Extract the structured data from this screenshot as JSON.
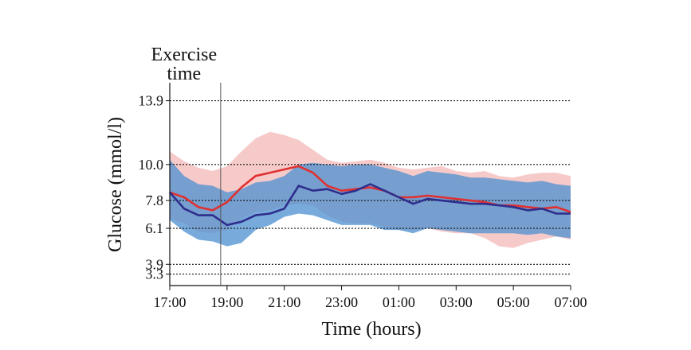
{
  "chart_data": {
    "type": "line",
    "xlabel": "Time (hours)",
    "ylabel": "Glucose (mmol/l)",
    "x_ticks": [
      "17:00",
      "19:00",
      "21:00",
      "23:00",
      "01:00",
      "03:00",
      "05:00",
      "07:00"
    ],
    "x_range_hours_after_17_00": [
      0,
      14
    ],
    "y_ticks": [
      3.3,
      3.9,
      6.1,
      7.8,
      10.0,
      13.9
    ],
    "y_tick_labels": [
      "3.3",
      "3.9",
      "6.1",
      "7.8",
      "10.0",
      "13.9"
    ],
    "ylim": [
      2.6,
      15.0
    ],
    "reference_lines": [
      3.3,
      3.9,
      6.1,
      7.8,
      10.0,
      13.9
    ],
    "reference_line_style": "dotted",
    "grid": false,
    "annotation": {
      "lines": [
        "Exercise",
        "time"
      ],
      "x": "19:00"
    },
    "series": [
      {
        "color": "#e03030",
        "band_color": "#f2a6a6",
        "x": [
          0,
          0.5,
          1,
          1.5,
          2,
          2.5,
          3,
          3.5,
          4,
          4.5,
          5,
          5.5,
          6,
          6.5,
          7,
          7.5,
          8,
          8.5,
          9,
          9.5,
          10,
          10.5,
          11,
          11.5,
          12,
          12.5,
          13,
          13.5,
          14
        ],
        "values": [
          8.3,
          8.0,
          7.4,
          7.2,
          7.7,
          8.6,
          9.3,
          9.5,
          9.7,
          9.9,
          9.5,
          8.7,
          8.4,
          8.5,
          8.6,
          8.4,
          8.0,
          8.0,
          8.1,
          8.0,
          7.9,
          7.8,
          7.7,
          7.5,
          7.5,
          7.4,
          7.3,
          7.4,
          7.1
        ],
        "band_upper": [
          10.8,
          10.2,
          9.8,
          9.6,
          9.9,
          10.8,
          11.6,
          12.0,
          11.8,
          11.5,
          10.9,
          10.3,
          10.1,
          10.2,
          10.3,
          10.1,
          9.8,
          9.7,
          9.8,
          9.9,
          9.6,
          9.5,
          9.6,
          9.3,
          9.2,
          9.4,
          9.5,
          9.5,
          9.3
        ],
        "band_lower": [
          6.7,
          6.4,
          5.9,
          5.8,
          6.0,
          6.7,
          7.1,
          7.2,
          7.5,
          7.6,
          7.5,
          6.9,
          6.5,
          6.4,
          6.4,
          6.2,
          6.0,
          6.0,
          6.1,
          5.9,
          5.8,
          5.8,
          5.5,
          5.0,
          4.9,
          5.2,
          5.4,
          5.6,
          5.4
        ]
      },
      {
        "color": "#2e2e8c",
        "band_color": "#4b8fd0",
        "x": [
          0,
          0.5,
          1,
          1.5,
          2,
          2.5,
          3,
          3.5,
          4,
          4.5,
          5,
          5.5,
          6,
          6.5,
          7,
          7.5,
          8,
          8.5,
          9,
          9.5,
          10,
          10.5,
          11,
          11.5,
          12,
          12.5,
          13,
          13.5,
          14
        ],
        "values": [
          8.3,
          7.3,
          6.9,
          6.9,
          6.3,
          6.5,
          6.9,
          7.0,
          7.3,
          8.7,
          8.4,
          8.5,
          8.2,
          8.4,
          8.8,
          8.4,
          8.0,
          7.6,
          7.9,
          7.8,
          7.7,
          7.6,
          7.6,
          7.5,
          7.4,
          7.2,
          7.3,
          7.0,
          7.0
        ],
        "band_upper": [
          10.3,
          9.3,
          8.8,
          8.7,
          8.3,
          8.5,
          8.9,
          9.0,
          9.3,
          10.0,
          10.1,
          10.0,
          9.9,
          10.0,
          10.0,
          9.8,
          9.6,
          9.3,
          9.6,
          9.5,
          9.4,
          9.2,
          9.2,
          9.1,
          9.0,
          8.9,
          9.0,
          8.8,
          8.7
        ],
        "band_lower": [
          6.6,
          5.9,
          5.4,
          5.3,
          5.0,
          5.2,
          6.0,
          6.3,
          6.8,
          7.0,
          6.9,
          6.6,
          6.3,
          6.3,
          6.3,
          6.0,
          6.0,
          5.8,
          6.1,
          6.0,
          5.9,
          5.8,
          5.8,
          5.8,
          5.8,
          5.7,
          5.8,
          5.6,
          5.5
        ]
      }
    ]
  }
}
